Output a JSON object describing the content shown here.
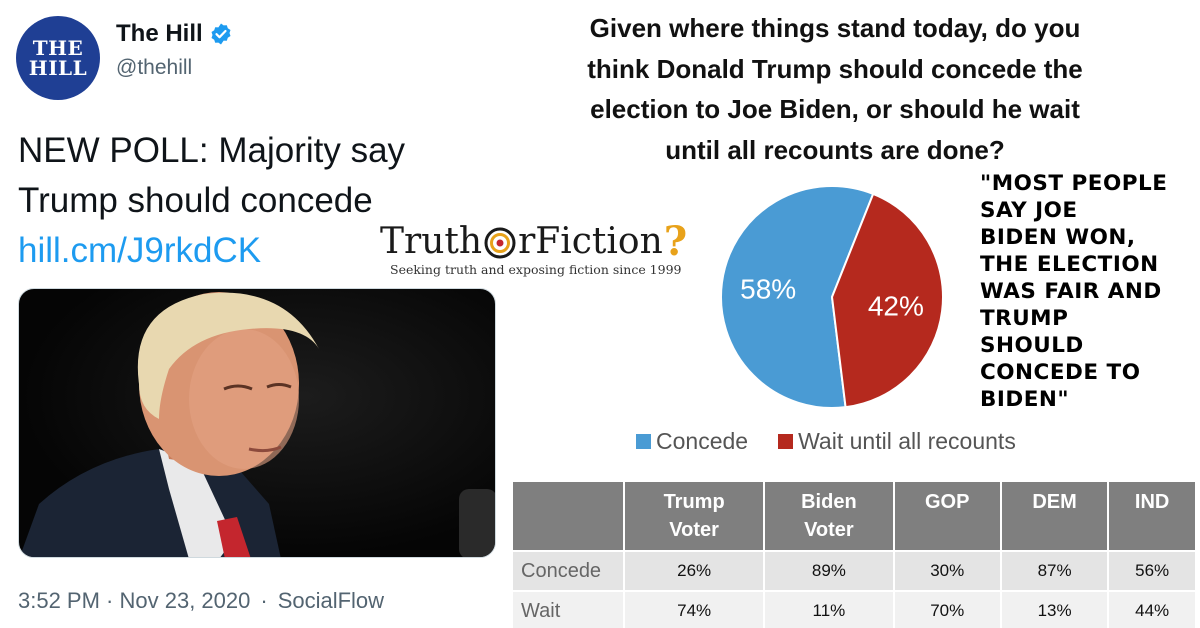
{
  "tweet": {
    "avatar_line1": "THE",
    "avatar_line2": "HILL",
    "account_name": "The Hill",
    "handle": "@thehill",
    "text_line1": "NEW POLL: Majority say",
    "text_line2": "Trump should concede",
    "link": "hill.cm/J9rkdCK",
    "time": "3:52 PM · Nov 23, 2020",
    "separator": "·",
    "source": "SocialFlow",
    "icons": {
      "verified": "verified-badge-icon",
      "photo": "trump-photo"
    },
    "colors": {
      "link": "#1d9bf0",
      "avatar_bg": "#1f3f94",
      "verified": "#1d9bf0"
    }
  },
  "question": {
    "line1": "Given where things stand today, do you",
    "line2": "think Donald Trump should concede the",
    "line3": "election to Joe Biden, or should he wait",
    "line4": "until all recounts are done?"
  },
  "watermark": {
    "word1": "Truth",
    "word2": "rFiction",
    "mark": "?",
    "tagline": "Seeking truth and exposing fiction since 1999"
  },
  "quote": {
    "lines": [
      "\"MOST PEOPLE",
      "SAY JOE",
      "BIDEN WON,",
      "THE ELECTION",
      "WAS FAIR AND",
      "TRUMP",
      "SHOULD",
      "CONCEDE TO",
      "BIDEN\""
    ]
  },
  "chart_data": {
    "type": "pie",
    "categories": [
      "Concede",
      "Wait until all recounts"
    ],
    "values": [
      58,
      42
    ],
    "labels": [
      "58%",
      "42%"
    ],
    "colors": [
      "#4a9bd4",
      "#b5291e"
    ],
    "legend": "bottom"
  },
  "table": {
    "headers": [
      {
        "line1": "Trump",
        "line2": "Voter"
      },
      {
        "line1": "Biden",
        "line2": "Voter"
      },
      {
        "line1": "GOP",
        "line2": ""
      },
      {
        "line1": "DEM",
        "line2": ""
      },
      {
        "line1": "IND",
        "line2": ""
      }
    ],
    "rows": [
      {
        "label": "Concede",
        "values": [
          "26%",
          "89%",
          "30%",
          "87%",
          "56%"
        ]
      },
      {
        "label": "Wait",
        "values": [
          "74%",
          "11%",
          "70%",
          "13%",
          "44%"
        ]
      }
    ]
  }
}
